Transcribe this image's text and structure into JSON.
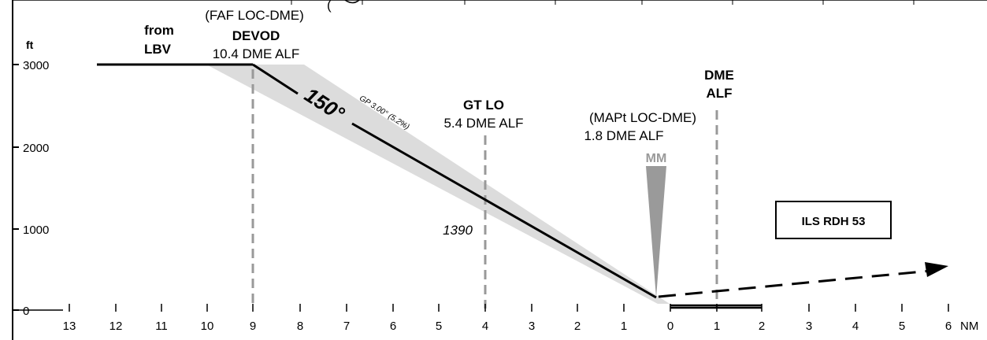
{
  "units": {
    "altitude": "ft",
    "distance": "NM"
  },
  "altitude_ticks": [
    "3000",
    "2000",
    "1000",
    "0"
  ],
  "distance_ticks": [
    "13",
    "12",
    "11",
    "10",
    "9",
    "8",
    "7",
    "6",
    "5",
    "4",
    "3",
    "2",
    "1",
    "0",
    "1",
    "2",
    "3",
    "4",
    "5",
    "6"
  ],
  "top_label_fragment": "(",
  "fixes": {
    "initial": {
      "line1": "from",
      "line2": "LBV"
    },
    "faf": {
      "role": "(FAF LOC-DME)",
      "name": "DEVOD",
      "dme": "10.4 DME ALF"
    },
    "stepdown": {
      "name": "GT LO",
      "dme": "5.4 DME ALF",
      "altitude": "1390"
    },
    "mapt": {
      "role": "(MAPt LOC-DME)",
      "dme": "1.8 DME ALF"
    },
    "dme_station": {
      "line1": "DME",
      "line2": "ALF"
    }
  },
  "approach": {
    "course": "150°",
    "glidepath": "GP 3.00° (5.2%)",
    "marker": "MM",
    "ils_rdh": "ILS RDH 53"
  },
  "colors": {
    "line": "#000000",
    "gray": "#999999",
    "cone": "#dcdcdc",
    "marker": "#9a9a9a"
  }
}
